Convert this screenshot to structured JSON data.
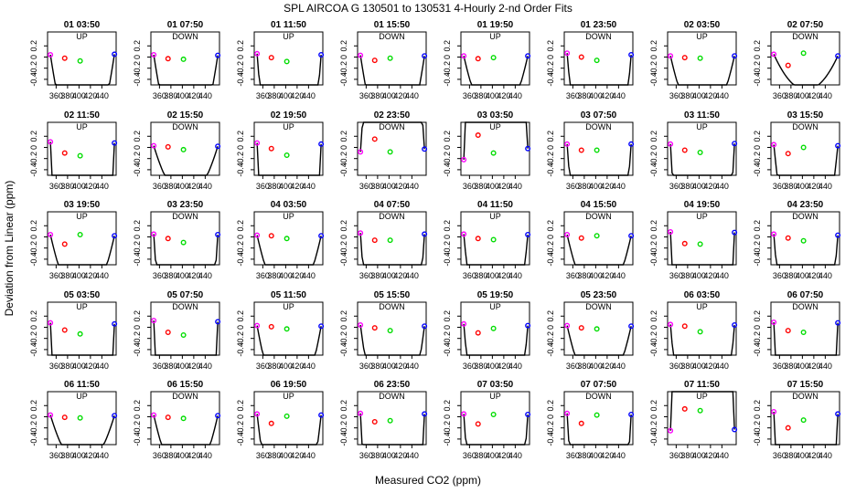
{
  "title": "SPL   AIRCOA G   130501 to 130531   4-Hourly 2-nd Order Fits",
  "xlabel": "Measured CO2 (ppm)",
  "ylabel": "Deviation from Linear (ppm)",
  "colors": {
    "s1": "#ff00ff",
    "s2": "#ff0000",
    "s3": "#00dd00",
    "s4": "#0000ff",
    "fit": "#000000",
    "frame": "#000000"
  },
  "chart_data": {
    "type": "scatter",
    "grid": false,
    "xlim": [
      345,
      465
    ],
    "ylim": [
      -0.5,
      0.45
    ],
    "xticks": [
      360,
      380,
      400,
      420,
      440
    ],
    "yticks": [
      0.2,
      0.0,
      -0.2,
      -0.4
    ],
    "xtick_labels": [
      "360",
      "400",
      "440"
    ],
    "ytick_labels": [
      "0.2",
      "0",
      "-0.2",
      "-0.4"
    ],
    "standard_x": [
      350,
      375,
      402,
      462
    ],
    "panels": [
      {
        "title": "01 03:50",
        "mode": "UP",
        "y": [
          0.04,
          -0.02,
          -0.07,
          0.05
        ],
        "fit": [
          0.0006,
          -0.493
        ]
      },
      {
        "title": "01 07:50",
        "mode": "DOWN",
        "y": [
          0.04,
          -0.03,
          -0.04,
          0.03
        ],
        "fit": [
          0.0006,
          -0.493
        ]
      },
      {
        "title": "01 11:50",
        "mode": "UP",
        "y": [
          0.06,
          -0.01,
          -0.08,
          0.04
        ],
        "fit": [
          0.0012,
          -0.975
        ]
      },
      {
        "title": "01 15:50",
        "mode": "DOWN",
        "y": [
          0.03,
          -0.06,
          -0.02,
          0.02
        ],
        "fit": [
          0.0006,
          -0.49
        ]
      },
      {
        "title": "01 19:50",
        "mode": "UP",
        "y": [
          0.02,
          -0.03,
          -0.01,
          0.02
        ],
        "fit": [
          0.0004,
          -0.34
        ]
      },
      {
        "title": "01 23:50",
        "mode": "DOWN",
        "y": [
          0.07,
          0.0,
          -0.06,
          0.04
        ],
        "fit": [
          0.0011,
          -0.94
        ]
      },
      {
        "title": "02 03:50",
        "mode": "UP",
        "y": [
          0.02,
          -0.01,
          -0.02,
          0.02
        ],
        "fit": [
          0.0004,
          -0.34
        ]
      },
      {
        "title": "02 07:50",
        "mode": "DOWN",
        "y": [
          0.05,
          -0.15,
          0.07,
          0.02
        ],
        "fit": [
          0.0002,
          -0.2
        ]
      },
      {
        "title": "02 11:50",
        "mode": "UP",
        "y": [
          0.1,
          -0.1,
          -0.15,
          0.08
        ],
        "fit": [
          0.003,
          -2.49
        ]
      },
      {
        "title": "02 15:50",
        "mode": "DOWN",
        "y": [
          0.03,
          0.01,
          -0.04,
          0.02
        ],
        "fit": [
          0.0003,
          -0.27
        ]
      },
      {
        "title": "02 19:50",
        "mode": "UP",
        "y": [
          0.08,
          -0.02,
          -0.14,
          0.06
        ],
        "fit": [
          0.0022,
          -1.81
        ]
      },
      {
        "title": "02 23:50",
        "mode": "DOWN",
        "y": [
          -0.08,
          0.15,
          -0.08,
          -0.03
        ],
        "fit": [
          -0.0014,
          1.08
        ]
      },
      {
        "title": "03 03:50",
        "mode": "UP",
        "y": [
          -0.22,
          0.22,
          -0.1,
          -0.02
        ],
        "fit": [
          -0.0028,
          2.22
        ]
      },
      {
        "title": "03 07:50",
        "mode": "DOWN",
        "y": [
          0.06,
          -0.05,
          -0.05,
          0.06
        ],
        "fit": [
          0.0013,
          -1.08
        ]
      },
      {
        "title": "03 11:50",
        "mode": "UP",
        "y": [
          0.06,
          -0.05,
          -0.09,
          0.07
        ],
        "fit": [
          0.0017,
          -1.4
        ]
      },
      {
        "title": "03 15:50",
        "mode": "DOWN",
        "y": [
          0.05,
          -0.11,
          0.0,
          0.03
        ],
        "fit": [
          0.0009,
          -0.75
        ]
      },
      {
        "title": "03 19:50",
        "mode": "UP",
        "y": [
          0.04,
          -0.13,
          0.04,
          0.02
        ],
        "fit": [
          0.0004,
          -0.31
        ]
      },
      {
        "title": "03 23:50",
        "mode": "DOWN",
        "y": [
          0.05,
          -0.03,
          -0.1,
          0.04
        ],
        "fit": [
          0.0015,
          -1.24
        ]
      },
      {
        "title": "04 03:50",
        "mode": "UP",
        "y": [
          0.03,
          0.02,
          -0.03,
          0.02
        ],
        "fit": [
          0.0004,
          -0.32
        ]
      },
      {
        "title": "04 07:50",
        "mode": "DOWN",
        "y": [
          0.07,
          -0.06,
          -0.06,
          0.05
        ],
        "fit": [
          0.0014,
          -1.17
        ]
      },
      {
        "title": "04 11:50",
        "mode": "UP",
        "y": [
          0.05,
          -0.03,
          -0.05,
          0.04
        ],
        "fit": [
          0.001,
          -0.82
        ]
      },
      {
        "title": "04 15:50",
        "mode": "DOWN",
        "y": [
          0.04,
          -0.02,
          0.02,
          0.02
        ],
        "fit": [
          0.0004,
          -0.34
        ]
      },
      {
        "title": "04 19:50",
        "mode": "UP",
        "y": [
          0.09,
          -0.12,
          -0.13,
          0.08
        ],
        "fit": [
          0.0028,
          -2.33
        ]
      },
      {
        "title": "04 23:50",
        "mode": "DOWN",
        "y": [
          0.05,
          -0.02,
          -0.07,
          0.03
        ],
        "fit": [
          0.0012,
          -0.98
        ]
      },
      {
        "title": "05 03:50",
        "mode": "UP",
        "y": [
          0.08,
          -0.05,
          -0.12,
          0.06
        ],
        "fit": [
          0.002,
          -1.65
        ]
      },
      {
        "title": "05 07:50",
        "mode": "DOWN",
        "y": [
          0.12,
          -0.09,
          -0.14,
          0.1
        ],
        "fit": [
          0.0031,
          -2.6
        ]
      },
      {
        "title": "05 11:50",
        "mode": "UP",
        "y": [
          0.03,
          0.01,
          -0.03,
          0.02
        ],
        "fit": [
          0.0005,
          -0.41
        ]
      },
      {
        "title": "05 15:50",
        "mode": "DOWN",
        "y": [
          0.04,
          -0.01,
          -0.06,
          0.02
        ],
        "fit": [
          0.0007,
          -0.58
        ]
      },
      {
        "title": "05 19:50",
        "mode": "UP",
        "y": [
          0.06,
          -0.1,
          -0.02,
          0.03
        ],
        "fit": [
          0.0011,
          -0.91
        ]
      },
      {
        "title": "05 23:50",
        "mode": "DOWN",
        "y": [
          0.03,
          -0.01,
          -0.03,
          0.02
        ],
        "fit": [
          0.0004,
          -0.32
        ]
      },
      {
        "title": "06 03:50",
        "mode": "UP",
        "y": [
          0.05,
          0.02,
          -0.08,
          0.04
        ],
        "fit": [
          0.0011,
          -0.9
        ]
      },
      {
        "title": "06 07:50",
        "mode": "DOWN",
        "y": [
          0.09,
          -0.06,
          -0.09,
          0.08
        ],
        "fit": [
          0.0022,
          -1.84
        ]
      },
      {
        "title": "06 11:50",
        "mode": "UP",
        "y": [
          0.03,
          -0.01,
          -0.02,
          0.02
        ],
        "fit": [
          0.0003,
          -0.26
        ]
      },
      {
        "title": "06 15:50",
        "mode": "DOWN",
        "y": [
          0.03,
          -0.01,
          -0.03,
          0.02
        ],
        "fit": [
          0.0004,
          -0.32
        ]
      },
      {
        "title": "06 19:50",
        "mode": "UP",
        "y": [
          0.05,
          -0.12,
          0.01,
          0.03
        ],
        "fit": [
          0.0008,
          -0.66
        ]
      },
      {
        "title": "06 23:50",
        "mode": "DOWN",
        "y": [
          0.06,
          -0.09,
          -0.07,
          0.05
        ],
        "fit": [
          0.0018,
          -1.49
        ]
      },
      {
        "title": "07 03:50",
        "mode": "UP",
        "y": [
          0.05,
          -0.13,
          0.04,
          0.04
        ],
        "fit": [
          0.0014,
          -1.16
        ]
      },
      {
        "title": "07 07:50",
        "mode": "DOWN",
        "y": [
          0.06,
          -0.12,
          0.03,
          0.04
        ],
        "fit": [
          0.0016,
          -1.33
        ]
      },
      {
        "title": "07 11:50",
        "mode": "UP",
        "y": [
          -0.25,
          0.14,
          0.11,
          -0.23
        ],
        "fit": [
          -0.0042,
          3.48
        ]
      },
      {
        "title": "07 15:50",
        "mode": "DOWN",
        "y": [
          0.09,
          -0.2,
          -0.06,
          0.05
        ],
        "fit": [
          0.0032,
          -2.65
        ]
      }
    ]
  }
}
